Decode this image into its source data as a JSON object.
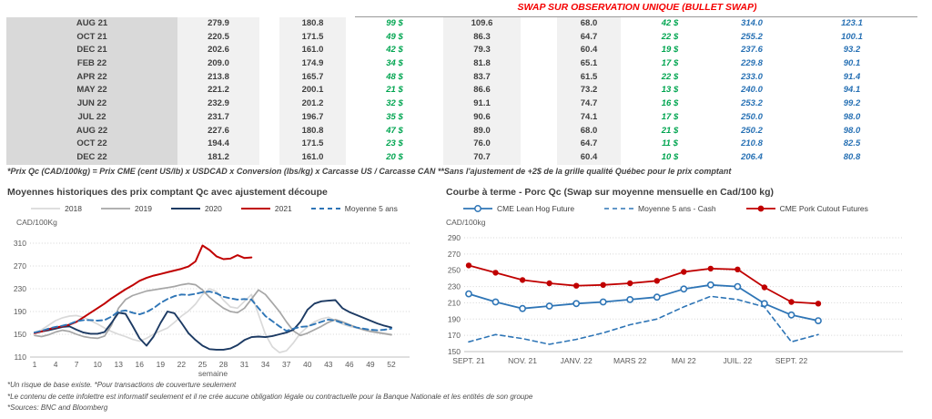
{
  "header": {
    "title": "SWAP SUR OBSERVATION UNIQUE (BULLET SWAP)",
    "title_color": "#f40000"
  },
  "table": {
    "rows": [
      [
        "AUG 21",
        "279.9",
        "180.8",
        "99 $",
        "109.6",
        "68.0",
        "42 $",
        "314.0",
        "123.1"
      ],
      [
        "OCT 21",
        "220.5",
        "171.5",
        "49 $",
        "86.3",
        "64.7",
        "22 $",
        "255.2",
        "100.1"
      ],
      [
        "DEC 21",
        "202.6",
        "161.0",
        "42 $",
        "79.3",
        "60.4",
        "19 $",
        "237.6",
        "93.2"
      ],
      [
        "FEB 22",
        "209.0",
        "174.9",
        "34 $",
        "81.8",
        "65.1",
        "17 $",
        "229.8",
        "90.1"
      ],
      [
        "APR 22",
        "213.8",
        "165.7",
        "48 $",
        "83.7",
        "61.5",
        "22 $",
        "233.0",
        "91.4"
      ],
      [
        "MAY 22",
        "221.2",
        "200.1",
        "21 $",
        "86.6",
        "73.2",
        "13 $",
        "240.0",
        "94.1"
      ],
      [
        "JUN 22",
        "232.9",
        "201.2",
        "32 $",
        "91.1",
        "74.7",
        "16 $",
        "253.2",
        "99.2"
      ],
      [
        "JUL 22",
        "231.7",
        "196.7",
        "35 $",
        "90.6",
        "74.1",
        "17 $",
        "250.0",
        "98.0"
      ],
      [
        "AUG 22",
        "227.6",
        "180.8",
        "47 $",
        "89.0",
        "68.0",
        "21 $",
        "250.2",
        "98.0"
      ],
      [
        "OCT 22",
        "194.4",
        "171.5",
        "23 $",
        "76.0",
        "64.7",
        "11 $",
        "210.8",
        "82.5"
      ],
      [
        "DEC 22",
        "181.2",
        "161.0",
        "20 $",
        "70.7",
        "60.4",
        "10 $",
        "206.4",
        "80.8"
      ]
    ],
    "footnote": "*Prix Qc (CAD/100kg) = Prix CME (cent US/lb) x USDCAD x Conversion (lbs/kg) x Carcasse US / Carcasse CAN **Sans l'ajustement de +2$ de la grille qualité Québec pour le prix comptant"
  },
  "colors": {
    "green": "#00a550",
    "blue_value": "#2670b4",
    "red_title": "#f40000",
    "month_bg": "#d9d9d9",
    "value_bg": "#f1f1f1",
    "grid": "#d4d4d4",
    "axis": "#bfbfbf"
  },
  "chart_data": [
    {
      "type": "line",
      "title": "Moyennes historiques des prix comptant Qc avec ajustement découpe",
      "ylabel": "CAD/100Kg",
      "xlabel": "semaine",
      "ylim": [
        110,
        310
      ],
      "yticks": [
        110,
        150,
        190,
        230,
        270,
        310
      ],
      "x_count": 52,
      "xticks": [
        1,
        4,
        7,
        10,
        13,
        16,
        19,
        22,
        25,
        28,
        31,
        34,
        37,
        40,
        43,
        46,
        49,
        52
      ],
      "grid": true,
      "legend_position": "top",
      "series": [
        {
          "name": "2018",
          "color": "#d9d9d9",
          "width": 1.7,
          "values": [
            152,
            158,
            166,
            174,
            179,
            182,
            183,
            180,
            174,
            168,
            161,
            155,
            150,
            146,
            141,
            138,
            143,
            150,
            156,
            161,
            171,
            182,
            191,
            203,
            220,
            230,
            225,
            210,
            198,
            196,
            208,
            220,
            185,
            150,
            128,
            118,
            121,
            135,
            152,
            163,
            172,
            177,
            180,
            174,
            168,
            164,
            161,
            158,
            156,
            154,
            152,
            150
          ]
        },
        {
          "name": "2019",
          "color": "#a6a6a6",
          "width": 1.7,
          "values": [
            148,
            146,
            149,
            154,
            157,
            155,
            150,
            146,
            144,
            143,
            147,
            166,
            196,
            211,
            218,
            222,
            226,
            228,
            230,
            232,
            234,
            237,
            239,
            237,
            228,
            215,
            205,
            196,
            190,
            188,
            196,
            212,
            228,
            220,
            205,
            190,
            172,
            156,
            148,
            152,
            158,
            164,
            171,
            176,
            172,
            167,
            162,
            158,
            155,
            153,
            151,
            149
          ]
        },
        {
          "name": "2020",
          "color": "#1c3a63",
          "width": 1.9,
          "values": [
            153,
            155,
            157,
            160,
            163,
            164,
            158,
            153,
            151,
            151,
            154,
            170,
            188,
            186,
            165,
            143,
            130,
            146,
            170,
            190,
            187,
            170,
            152,
            140,
            130,
            124,
            123,
            123,
            125,
            131,
            140,
            145,
            146,
            145,
            147,
            150,
            153,
            158,
            172,
            193,
            204,
            208,
            209,
            210,
            196,
            189,
            184,
            179,
            174,
            169,
            165,
            162
          ]
        },
        {
          "name": "2021",
          "color": "#c00000",
          "width": 2,
          "values": [
            152,
            155,
            159,
            162,
            164,
            167,
            172,
            180,
            188,
            196,
            204,
            213,
            221,
            229,
            236,
            244,
            249,
            253,
            256,
            259,
            262,
            265,
            269,
            278,
            306,
            298,
            287,
            282,
            283,
            289,
            284,
            285
          ]
        },
        {
          "name": "Moyenne 5 ans",
          "color": "#2e75b6",
          "width": 1.9,
          "dash": "6 4",
          "values": [
            153,
            156,
            160,
            163,
            165,
            168,
            173,
            175,
            175,
            174,
            175,
            181,
            190,
            192,
            188,
            185,
            189,
            196,
            205,
            212,
            217,
            220,
            219,
            221,
            224,
            225,
            222,
            216,
            213,
            211,
            212,
            211,
            196,
            182,
            173,
            164,
            156,
            160,
            163,
            164,
            168,
            172,
            176,
            174,
            170,
            166,
            162,
            160,
            158,
            157,
            158,
            160
          ]
        }
      ]
    },
    {
      "type": "line",
      "title": "Courbe à terme - Porc Qc (Swap sur moyenne mensuelle en Cad/100 kg)",
      "ylabel": "CAD/100kg",
      "xlabel": "",
      "ylim": [
        150,
        290
      ],
      "yticks": [
        150,
        170,
        190,
        210,
        230,
        250,
        270,
        290
      ],
      "x_count": 14,
      "x_labels": [
        "SEPT. 21",
        "NOV. 21",
        "JANV. 22",
        "MARS 22",
        "MAI 22",
        "JUIL. 22",
        "SEPT. 22"
      ],
      "x_label_positions": [
        0,
        2,
        4,
        6,
        8,
        10,
        12
      ],
      "grid": true,
      "legend_position": "top",
      "series": [
        {
          "name": "CME Lean Hog Future",
          "color": "#2e75b6",
          "width": 1.8,
          "marker": "open",
          "values": [
            221,
            211,
            203,
            206,
            209,
            211,
            214,
            217,
            227,
            232,
            230,
            209,
            195,
            188
          ]
        },
        {
          "name": "Moyenne 5 ans - Cash",
          "color": "#2e75b6",
          "width": 1.6,
          "dash": "5 4",
          "values": [
            162,
            171,
            166,
            159,
            165,
            173,
            183,
            190,
            205,
            218,
            214,
            205,
            162,
            171
          ]
        },
        {
          "name": "CME Pork Cutout Futures",
          "color": "#c00000",
          "width": 1.8,
          "marker": "filled",
          "values": [
            256,
            247,
            238,
            234,
            231,
            232,
            234,
            237,
            248,
            252,
            251,
            229,
            211,
            209
          ]
        }
      ]
    }
  ],
  "footer": {
    "line1": "*Un risque de base existe. *Pour transactions de couverture seulement",
    "line2": "*Le contenu de cette infolettre est informatif seulement et il ne crée aucune obligation légale ou contractuelle pour la Banque Nationale et les entités de son groupe",
    "line3": "*Sources: BNC and Bloomberg"
  }
}
